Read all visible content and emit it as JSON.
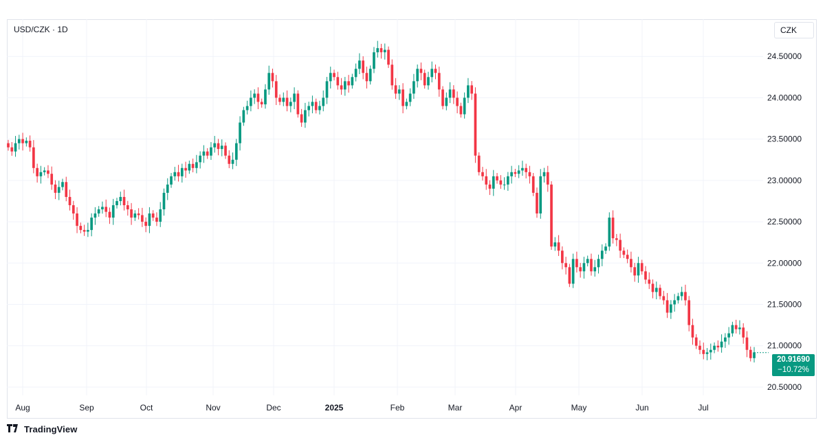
{
  "header": {
    "symbol": "USD/CZK · 1D",
    "currency": "CZK"
  },
  "footer": {
    "brand": "TradingView"
  },
  "last_price": {
    "value": "20.91690",
    "change": "−10.72%"
  },
  "colors": {
    "up": "#089981",
    "down": "#f23645",
    "grid": "#f0f3fa",
    "tag": "#089981"
  },
  "chart_data": {
    "type": "candlestick",
    "title": "USD/CZK · 1D",
    "x_tick_labels": [
      "Aug",
      "Sep",
      "Oct",
      "Nov",
      "Dec",
      "2025",
      "Feb",
      "Mar",
      "Apr",
      "May",
      "Jun",
      "Jul"
    ],
    "y_tick_labels": [
      "24.50000",
      "24.00000",
      "23.50000",
      "23.00000",
      "22.50000",
      "22.00000",
      "21.50000",
      "21.00000",
      "20.50000"
    ],
    "ylim": [
      20.4,
      24.95
    ],
    "grid": true,
    "last_price": 20.9169,
    "change_percent": -10.72,
    "closes": [
      23.4,
      23.35,
      23.45,
      23.5,
      23.45,
      23.48,
      23.4,
      23.15,
      23.05,
      23.1,
      23.12,
      23.08,
      22.95,
      22.85,
      22.92,
      22.98,
      22.8,
      22.7,
      22.6,
      22.45,
      22.4,
      22.38,
      22.4,
      22.55,
      22.6,
      22.65,
      22.68,
      22.62,
      22.55,
      22.7,
      22.75,
      22.8,
      22.7,
      22.65,
      22.55,
      22.6,
      22.58,
      22.5,
      22.45,
      22.6,
      22.55,
      22.5,
      22.65,
      22.85,
      22.95,
      23.05,
      23.1,
      23.05,
      23.15,
      23.12,
      23.2,
      23.15,
      23.22,
      23.3,
      23.35,
      23.3,
      23.4,
      23.45,
      23.38,
      23.42,
      23.3,
      23.2,
      23.25,
      23.45,
      23.7,
      23.85,
      23.9,
      24.0,
      24.05,
      23.95,
      23.92,
      24.1,
      24.3,
      24.2,
      24.0,
      23.95,
      24.0,
      23.9,
      23.95,
      24.05,
      23.8,
      23.7,
      23.85,
      23.9,
      23.95,
      23.85,
      23.9,
      24.0,
      24.2,
      24.3,
      24.25,
      24.15,
      24.1,
      24.2,
      24.15,
      24.25,
      24.35,
      24.45,
      24.3,
      24.2,
      24.35,
      24.55,
      24.6,
      24.55,
      24.58,
      24.4,
      24.15,
      24.05,
      24.1,
      23.9,
      23.95,
      24.05,
      24.2,
      24.35,
      24.3,
      24.15,
      24.25,
      24.35,
      24.3,
      24.1,
      23.9,
      24.0,
      24.1,
      24.0,
      23.9,
      23.8,
      24.0,
      24.15,
      24.05,
      23.3,
      23.1,
      23.05,
      22.95,
      22.9,
      23.05,
      23.0,
      22.95,
      22.95,
      23.05,
      23.1,
      23.08,
      23.12,
      23.15,
      23.1,
      23.05,
      22.85,
      22.6,
      23.05,
      23.1,
      22.95,
      22.2,
      22.25,
      22.15,
      22.0,
      21.95,
      21.75,
      22.05,
      21.95,
      21.9,
      22.0,
      22.05,
      21.9,
      21.95,
      22.05,
      22.15,
      22.2,
      22.55,
      22.3,
      22.28,
      22.15,
      22.1,
      22.05,
      21.95,
      21.85,
      22.0,
      21.9,
      21.8,
      21.75,
      21.65,
      21.7,
      21.6,
      21.55,
      21.4,
      21.5,
      21.55,
      21.6,
      21.65,
      21.55,
      21.25,
      21.1,
      21.0,
      20.95,
      20.9,
      20.92,
      20.95,
      21.0,
      20.98,
      21.05,
      21.1,
      21.15,
      21.25,
      21.2,
      21.22,
      21.1,
      20.95,
      20.85,
      20.92
    ]
  }
}
